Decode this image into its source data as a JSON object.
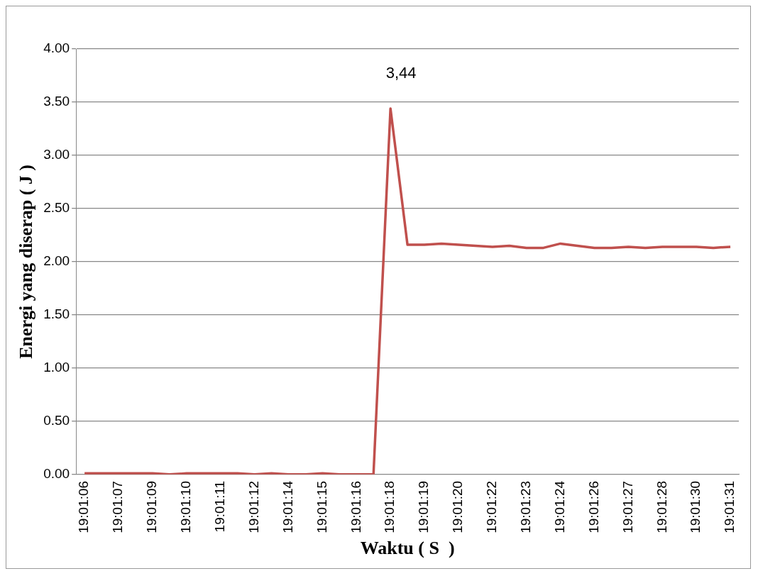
{
  "chart_data": {
    "type": "line",
    "xlabel": "Waktu ( S  )",
    "ylabel": "Energi yang diserap ( J )",
    "categories": [
      "19:01:06",
      null,
      "19:01:07",
      null,
      "19:01:09",
      null,
      "19:01:10",
      null,
      "19:01:11",
      null,
      "19:01:12",
      null,
      "19:01:14",
      null,
      "19:01:15",
      null,
      "19:01:16",
      null,
      "19:01:18",
      null,
      "19:01:19",
      null,
      "19:01:20",
      null,
      "19:01:22",
      null,
      "19:01:23",
      null,
      "19:01:24",
      null,
      "19:01:26",
      null,
      "19:01:27",
      null,
      "19:01:28",
      null,
      "19:01:30",
      null,
      "19:01:31"
    ],
    "series": [
      {
        "color": "#c0504d",
        "values": [
          0.01,
          0.01,
          0.01,
          0.01,
          0.01,
          0.0,
          0.01,
          0.01,
          0.01,
          0.01,
          0.0,
          0.01,
          0.0,
          0.0,
          0.01,
          0.0,
          0.0,
          0.0,
          3.44,
          2.16,
          2.16,
          2.17,
          2.16,
          2.15,
          2.14,
          2.15,
          2.13,
          2.13,
          2.17,
          2.15,
          2.13,
          2.13,
          2.14,
          2.13,
          2.14,
          2.14,
          2.14,
          2.13,
          2.14
        ]
      }
    ],
    "ylim": [
      0,
      4
    ],
    "yticks": [
      {
        "value": 0,
        "label": "0.00"
      },
      {
        "value": 0.5,
        "label": "0.50"
      },
      {
        "value": 1,
        "label": "1.00"
      },
      {
        "value": 1.5,
        "label": "1.50"
      },
      {
        "value": 2,
        "label": "2.00"
      },
      {
        "value": 2.5,
        "label": "2.50"
      },
      {
        "value": 3,
        "label": "3.00"
      },
      {
        "value": 3.5,
        "label": "3.50"
      },
      {
        "value": 4,
        "label": "4.00"
      }
    ],
    "grid": "y",
    "legend": false,
    "marker": "none",
    "line_style": "solid",
    "annotations": [
      {
        "text": "3,44",
        "x": "19:01:18",
        "y": 3.44
      }
    ]
  }
}
